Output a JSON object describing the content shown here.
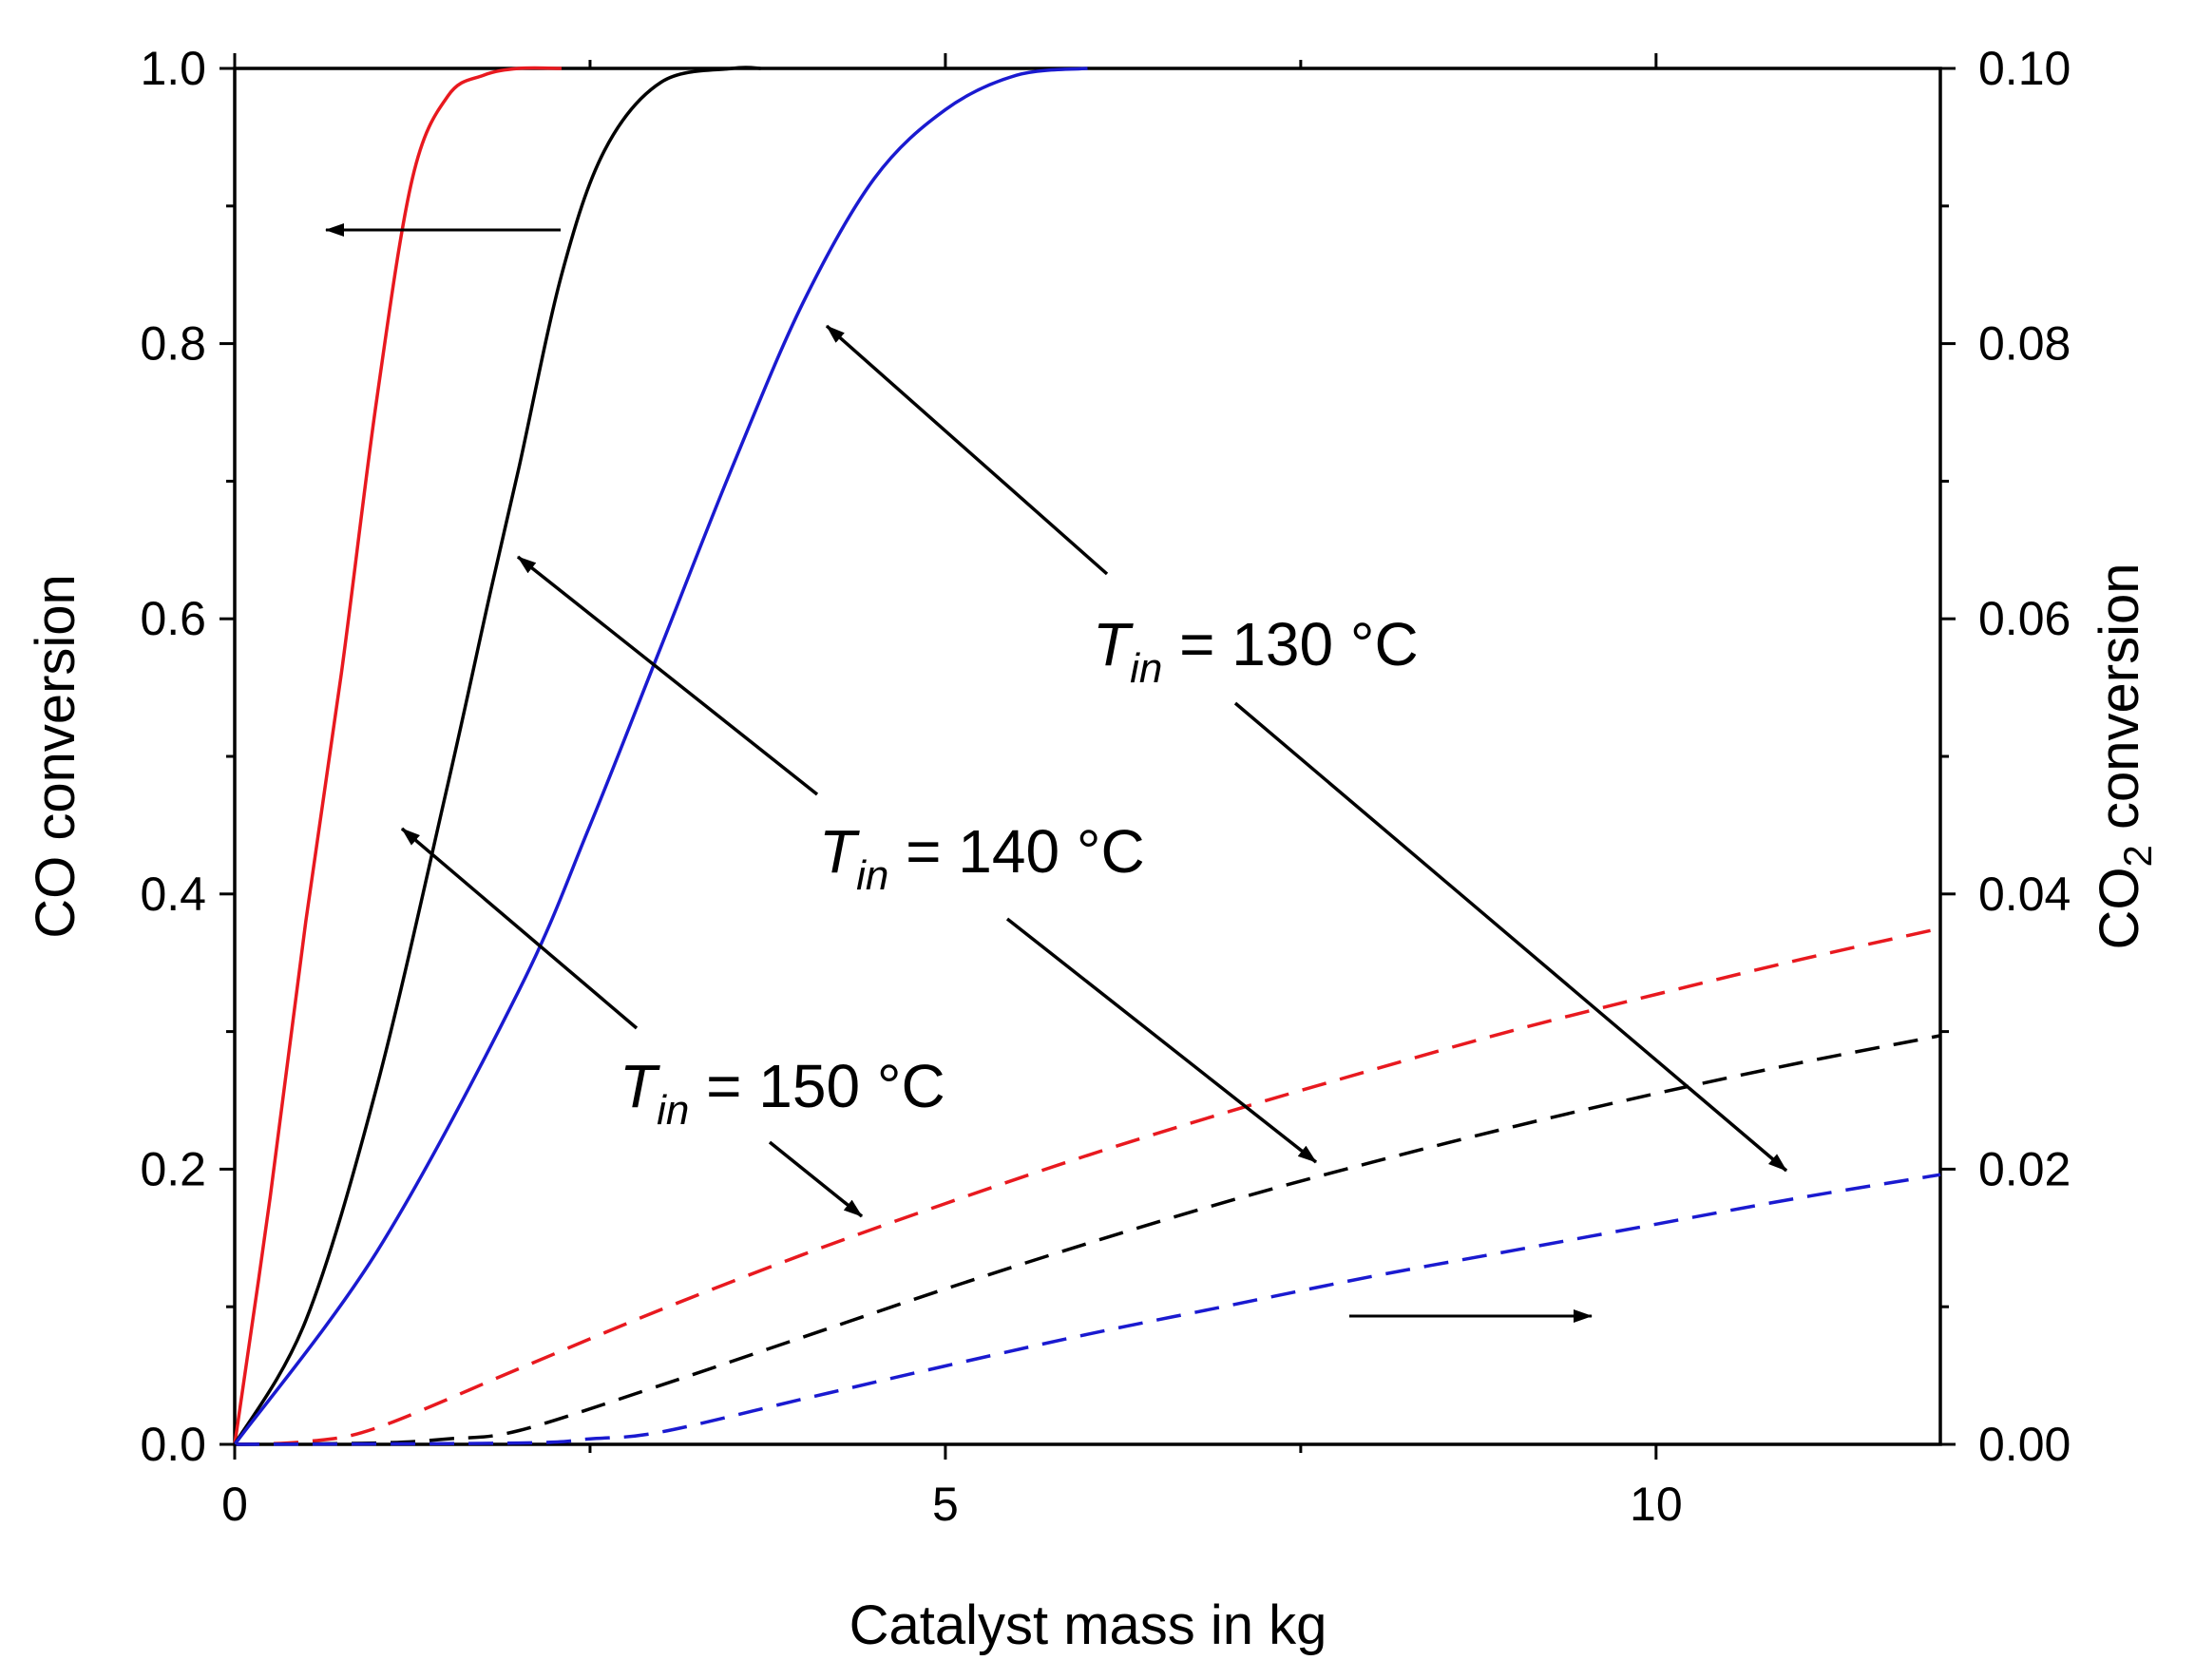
{
  "chart_data": {
    "type": "line",
    "title": "",
    "xlabel": "Catalyst mass in kg",
    "ylabel_left": "CO conversion",
    "ylabel_right": {
      "main": "CO",
      "sub": "2",
      "rest": " conversion"
    },
    "xlim": [
      0,
      12
    ],
    "ylim_left": [
      0,
      1.0
    ],
    "ylim_right": [
      0,
      0.1
    ],
    "x_ticks": [
      0,
      5,
      10
    ],
    "x_tick_labels": [
      "0",
      "5",
      "10"
    ],
    "y_left_ticks": [
      0,
      0.2,
      0.4,
      0.6,
      0.8,
      1.0
    ],
    "y_left_tick_labels": [
      "0.0",
      "0.2",
      "0.4",
      "0.6",
      "0.8",
      "1.0"
    ],
    "y_right_ticks": [
      0,
      0.02,
      0.04,
      0.06,
      0.08,
      0.1
    ],
    "y_right_tick_labels": [
      "0.00",
      "0.02",
      "0.04",
      "0.06",
      "0.08",
      "0.10"
    ],
    "grid": false,
    "series": [
      {
        "name": "CO conversion, T_in = 150 °C",
        "axis": "left",
        "style": "solid",
        "color": "#e8191f",
        "x": [
          0,
          0.25,
          0.5,
          0.75,
          1.0,
          1.25,
          1.5,
          1.75,
          2.0,
          2.3
        ],
        "y": [
          0,
          0.18,
          0.38,
          0.56,
          0.76,
          0.92,
          0.98,
          0.995,
          1.0,
          1.0
        ]
      },
      {
        "name": "CO conversion, T_in = 140 °C",
        "axis": "left",
        "style": "solid",
        "color": "#000000",
        "x": [
          0,
          0.5,
          1.0,
          1.5,
          1.8,
          2.0,
          2.3,
          2.6,
          3.0,
          3.5,
          3.7
        ],
        "y": [
          0,
          0.09,
          0.26,
          0.48,
          0.62,
          0.71,
          0.85,
          0.94,
          0.99,
          1.0,
          1.0
        ]
      },
      {
        "name": "CO conversion, T_in = 130 °C",
        "axis": "left",
        "style": "solid",
        "color": "#1a1ad0",
        "x": [
          0,
          1.0,
          2.0,
          2.5,
          3.0,
          3.5,
          4.0,
          4.5,
          5.0,
          5.5,
          6.0
        ],
        "y": [
          0,
          0.14,
          0.33,
          0.45,
          0.58,
          0.71,
          0.83,
          0.92,
          0.97,
          0.995,
          1.0
        ]
      },
      {
        "name": "CO2 conversion, T_in = 150 °C",
        "axis": "right",
        "style": "dashed",
        "color": "#e8191f",
        "x": [
          0,
          0.5,
          1.0,
          2.0,
          3.0,
          4.0,
          5.0,
          6.0,
          7.0,
          8.0,
          9.0,
          10.0,
          11.0,
          12.0
        ],
        "y": [
          0,
          0.0002,
          0.0012,
          0.0055,
          0.0098,
          0.0138,
          0.0175,
          0.021,
          0.0242,
          0.0272,
          0.0301,
          0.0327,
          0.0352,
          0.0375
        ]
      },
      {
        "name": "CO2 conversion, T_in = 140 °C",
        "axis": "right",
        "style": "dashed",
        "color": "#000000",
        "x": [
          0,
          1.0,
          1.5,
          2.0,
          3.0,
          4.0,
          5.0,
          6.0,
          7.0,
          8.0,
          9.0,
          10.0,
          11.0,
          12.0
        ],
        "y": [
          0,
          0.0001,
          0.0004,
          0.001,
          0.0043,
          0.0078,
          0.0113,
          0.0146,
          0.0177,
          0.0205,
          0.0231,
          0.0255,
          0.0277,
          0.0297
        ]
      },
      {
        "name": "CO2 conversion, T_in = 130 °C",
        "axis": "right",
        "style": "dashed",
        "color": "#1a1ad0",
        "x": [
          0,
          2.0,
          2.5,
          3.0,
          4.0,
          5.0,
          6.0,
          7.0,
          8.0,
          9.0,
          10.0,
          11.0,
          12.0
        ],
        "y": [
          0,
          0.0001,
          0.0004,
          0.0009,
          0.0033,
          0.0057,
          0.008,
          0.0101,
          0.0122,
          0.0141,
          0.016,
          0.0179,
          0.0196
        ]
      }
    ],
    "annotations": [
      {
        "label_main": "T",
        "label_sub": "in",
        "label_rest": " = 130 °C",
        "points_to": "CO2 (blue) and CO (blue) curves"
      },
      {
        "label_main": "T",
        "label_sub": "in",
        "label_rest": " = 140 °C",
        "points_to": "CO2 (black) and CO (black) curves"
      },
      {
        "label_main": "T",
        "label_sub": "in",
        "label_rest": " = 150 °C",
        "points_to": "CO2 (red) and CO (red) curves"
      }
    ],
    "axis_indicators": [
      "left arrow: solid lines read on left axis",
      "right arrow: dashed lines read on right axis"
    ]
  }
}
